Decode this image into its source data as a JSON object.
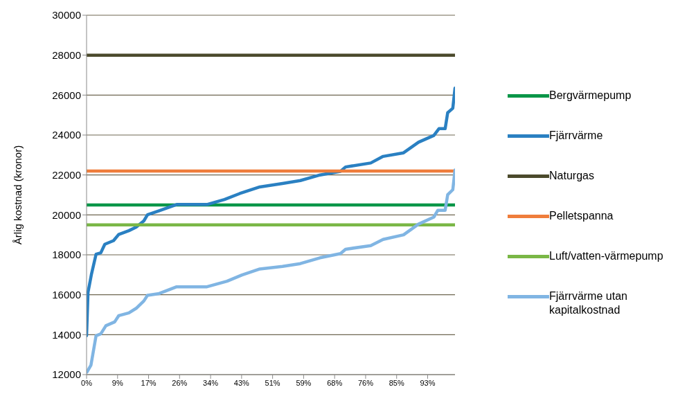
{
  "chart_data": {
    "type": "line",
    "ylabel": "Årlig kostnad (kronor)",
    "xlim": [
      0,
      101
    ],
    "xticks": [
      {
        "value": 0,
        "label": "0%"
      },
      {
        "value": 8.5,
        "label": "9%"
      },
      {
        "value": 17,
        "label": "17%"
      },
      {
        "value": 25.5,
        "label": "26%"
      },
      {
        "value": 34,
        "label": "34%"
      },
      {
        "value": 42.5,
        "label": "43%"
      },
      {
        "value": 51,
        "label": "51%"
      },
      {
        "value": 59.5,
        "label": "59%"
      },
      {
        "value": 68,
        "label": "68%"
      },
      {
        "value": 76.5,
        "label": "76%"
      },
      {
        "value": 85,
        "label": "85%"
      },
      {
        "value": 93.5,
        "label": "93%"
      }
    ],
    "ylim": [
      12000,
      30000
    ],
    "yticks": [
      12000,
      14000,
      16000,
      18000,
      20000,
      22000,
      24000,
      26000,
      28000,
      30000
    ],
    "grid": "y",
    "legend": "right",
    "marker": "none",
    "line_style": "solid",
    "series": [
      {
        "name": "Bergvärmepump",
        "color": "#0a9648",
        "x": [
          0,
          101
        ],
        "values": [
          20500,
          20500
        ]
      },
      {
        "name": "Fjärrvärme",
        "color": "#2a80c2",
        "x": [
          0,
          0.4,
          1.3,
          2.6,
          3.9,
          5,
          7.4,
          8.8,
          11.6,
          13.6,
          15.7,
          16.7,
          19.9,
          24.7,
          33,
          37.8,
          42,
          47.5,
          53.7,
          58.6,
          64,
          69.6,
          71,
          77.9,
          81.3,
          86.9,
          91,
          95.2,
          96.6,
          98.3,
          99,
          100.4,
          101
        ],
        "values": [
          13950,
          16120,
          16990,
          18030,
          18100,
          18530,
          18710,
          19020,
          19210,
          19390,
          19700,
          20010,
          20210,
          20520,
          20520,
          20770,
          21070,
          21400,
          21570,
          21720,
          22000,
          22180,
          22400,
          22600,
          22930,
          23110,
          23640,
          23980,
          24320,
          24320,
          25120,
          25340,
          26350
        ]
      },
      {
        "name": "Naturgas",
        "color": "#4b4a2c",
        "x": [
          0,
          101
        ],
        "values": [
          28000,
          28000
        ]
      },
      {
        "name": "Pelletspanna",
        "color": "#ef7d3b",
        "x": [
          0,
          101
        ],
        "values": [
          22200,
          22200
        ]
      },
      {
        "name": "Luft/vatten-värmepump",
        "color": "#7ab746",
        "x": [
          0,
          101
        ],
        "values": [
          19500,
          19500
        ]
      },
      {
        "name": "Fjärrvärme utan kapitalkostnad",
        "color": "#80b5e3",
        "x": [
          0.1,
          1.2,
          2.6,
          3.9,
          5.3,
          7.7,
          8.8,
          11.6,
          13.6,
          15.7,
          16.7,
          19.9,
          24.7,
          33,
          38.5,
          42.6,
          47.5,
          53.7,
          58.6,
          64,
          69.6,
          71,
          77.9,
          81.3,
          86.9,
          91,
          95.2,
          96.3,
          98.3,
          99,
          100.4,
          101
        ],
        "values": [
          12130,
          12470,
          13950,
          14040,
          14450,
          14640,
          14950,
          15090,
          15320,
          15690,
          15970,
          16060,
          16400,
          16400,
          16680,
          16990,
          17290,
          17420,
          17560,
          17850,
          18060,
          18280,
          18460,
          18770,
          19000,
          19540,
          19890,
          20230,
          20230,
          21010,
          21260,
          22250
        ]
      }
    ]
  }
}
